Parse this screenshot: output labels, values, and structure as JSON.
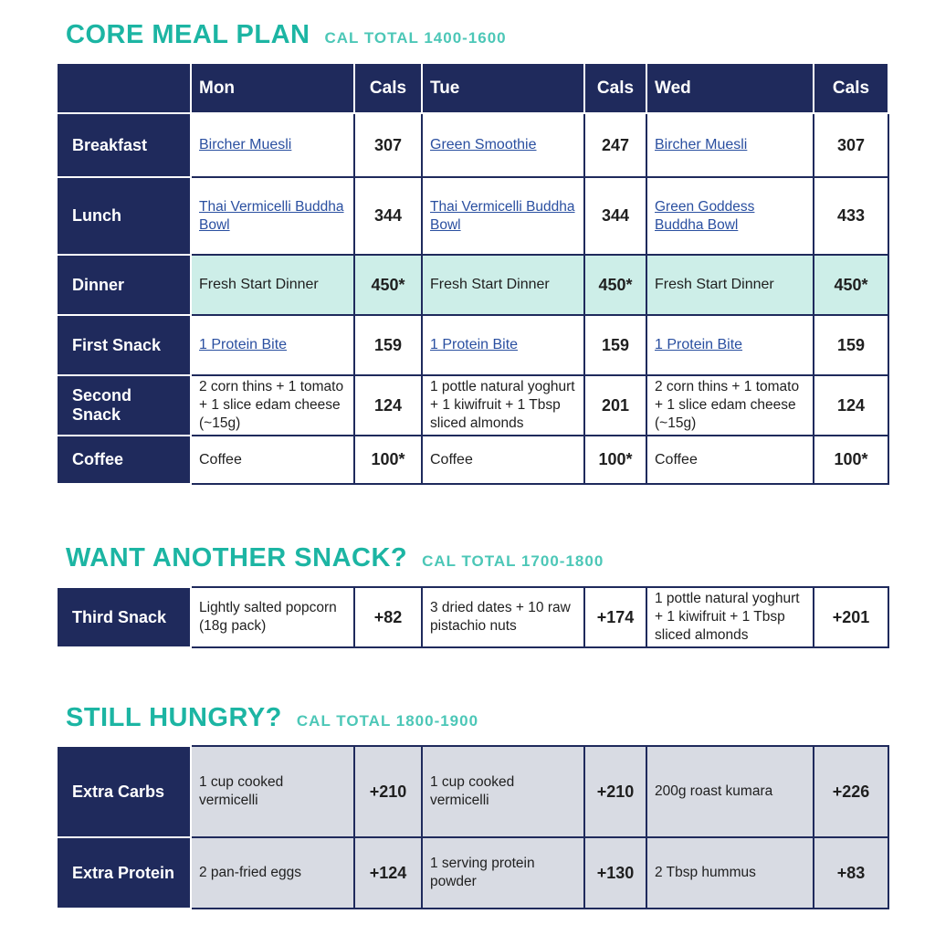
{
  "core": {
    "title": "CORE MEAL PLAN",
    "subtitle": "CAL TOTAL 1400-1600",
    "header": [
      "",
      "Mon",
      "Cals",
      "Tue",
      "Cals",
      "Wed",
      "Cals"
    ],
    "rows": [
      {
        "label": "Breakfast",
        "cells": [
          "Bircher Muesli",
          "307",
          "Green Smoothie",
          "247",
          "Bircher Muesli",
          "307"
        ]
      },
      {
        "label": "Lunch",
        "cells": [
          "Thai Vermicelli Buddha Bowl",
          "344",
          "Thai Vermicelli Buddha Bowl",
          "344",
          "Green Goddess Buddha Bowl",
          "433"
        ]
      },
      {
        "label": "Dinner",
        "cells": [
          "Fresh Start Dinner",
          "450*",
          "Fresh Start Dinner",
          "450*",
          "Fresh Start Dinner",
          "450*"
        ]
      },
      {
        "label": "First Snack",
        "cells": [
          "1 Protein Bite",
          "159",
          "1 Protein Bite",
          "159",
          "1 Protein Bite",
          "159"
        ]
      },
      {
        "label": "Second Snack",
        "cells": [
          "2 corn thins + 1 tomato + 1 slice edam cheese (~15g)",
          "124",
          "1 pottle natural yoghurt + 1 kiwifruit + 1 Tbsp sliced almonds",
          "201",
          "2 corn thins + 1 tomato + 1 slice edam cheese (~15g)",
          "124"
        ]
      },
      {
        "label": "Coffee",
        "cells": [
          "Coffee",
          "100*",
          "Coffee",
          "100*",
          "Coffee",
          "100*"
        ]
      }
    ]
  },
  "snack": {
    "title": "WANT ANOTHER SNACK?",
    "subtitle": "CAL TOTAL 1700-1800",
    "rows": [
      {
        "label": "Third Snack",
        "cells": [
          "Lightly salted popcorn (18g pack)",
          "+82",
          "3 dried dates + 10 raw pistachio nuts",
          "+174",
          "1 pottle natural yoghurt + 1 kiwifruit + 1 Tbsp sliced almonds",
          "+201"
        ]
      }
    ]
  },
  "hungry": {
    "title": "STILL HUNGRY?",
    "subtitle": "CAL TOTAL 1800-1900",
    "rows": [
      {
        "label": "Extra Carbs",
        "cells": [
          "1 cup cooked vermicelli",
          "+210",
          "1 cup cooked vermicelli",
          "+210",
          "200g roast kumara",
          "+226"
        ]
      },
      {
        "label": "Extra Protein",
        "cells": [
          "2 pan-fried eggs",
          "+124",
          "1 serving protein powder",
          "+130",
          "2 Tbsp hummus",
          "+83"
        ]
      }
    ]
  },
  "colors": {
    "navy": "#1f2a5c",
    "teal": "#1cb5a3",
    "mint": "#cdeee8",
    "grey": "#d8dbe3",
    "link": "#2a4fa0"
  }
}
